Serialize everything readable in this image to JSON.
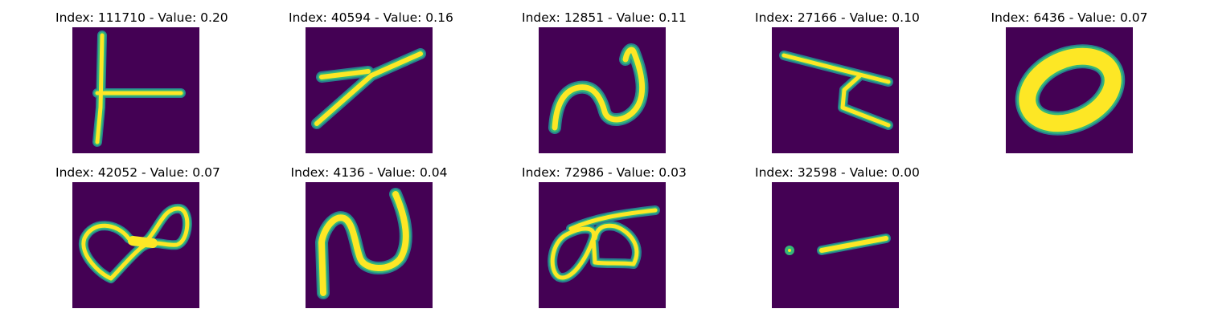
{
  "colors": {
    "background": "#440154",
    "stroke_outer": "#27808e",
    "stroke_mid": "#35b779",
    "stroke_core": "#fde725"
  },
  "panels": [
    {
      "title": "Index: 111710 - Value: 0.20",
      "index": 111710,
      "value": 0.2,
      "glyph": "t-shape"
    },
    {
      "title": "Index: 40594 - Value: 0.16",
      "index": 40594,
      "value": 0.16,
      "glyph": "slanted-stroke"
    },
    {
      "title": "Index: 12851 - Value: 0.11",
      "index": 12851,
      "value": 0.11,
      "glyph": "curl"
    },
    {
      "title": "Index: 27166 - Value: 0.10",
      "index": 27166,
      "value": 0.1,
      "glyph": "forked-line"
    },
    {
      "title": "Index: 6436 - Value: 0.07",
      "index": 6436,
      "value": 0.07,
      "glyph": "ring"
    },
    {
      "title": "Index: 42052 - Value: 0.07",
      "index": 42052,
      "value": 0.07,
      "glyph": "figure-eight"
    },
    {
      "title": "Index: 4136 - Value: 0.04",
      "index": 4136,
      "value": 0.04,
      "glyph": "curl"
    },
    {
      "title": "Index: 72986 - Value: 0.03",
      "index": 72986,
      "value": 0.03,
      "glyph": "loops"
    },
    {
      "title": "Index: 32598 - Value: 0.00",
      "index": 32598,
      "value": 0.0,
      "glyph": "dot-dash"
    }
  ]
}
